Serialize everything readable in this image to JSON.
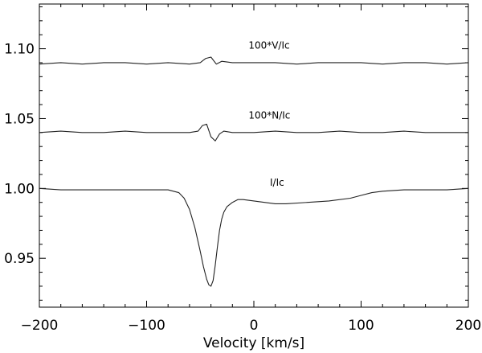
{
  "chart_data": {
    "type": "line",
    "xlabel": "Velocity [km/s]",
    "ylabel": "",
    "xlim": [
      -200,
      200
    ],
    "ylim": [
      0.915,
      1.132
    ],
    "xticks": [
      -200,
      -100,
      0,
      100,
      200
    ],
    "xtick_labels": [
      "−200",
      "−100",
      "0",
      "100",
      "200"
    ],
    "yticks": [
      0.95,
      1.0,
      1.05,
      1.1
    ],
    "ytick_labels": [
      "0.95",
      "1.00",
      "1.05",
      "1.10"
    ],
    "grid": false,
    "series": [
      {
        "name": "100*V/Ic",
        "label_at": [
          -5,
          1.1
        ],
        "x": [
          -200,
          -180,
          -160,
          -140,
          -120,
          -100,
          -80,
          -60,
          -50,
          -45,
          -40,
          -35,
          -30,
          -20,
          0,
          20,
          40,
          60,
          80,
          100,
          120,
          140,
          160,
          180,
          200
        ],
        "y": [
          1.089,
          1.09,
          1.089,
          1.09,
          1.09,
          1.089,
          1.09,
          1.089,
          1.09,
          1.093,
          1.094,
          1.089,
          1.091,
          1.09,
          1.09,
          1.09,
          1.089,
          1.09,
          1.09,
          1.09,
          1.089,
          1.09,
          1.09,
          1.089,
          1.09
        ]
      },
      {
        "name": "100*N/Ic",
        "label_at": [
          -5,
          1.05
        ],
        "x": [
          -200,
          -180,
          -160,
          -140,
          -120,
          -100,
          -80,
          -60,
          -52,
          -48,
          -44,
          -40,
          -36,
          -32,
          -28,
          -20,
          0,
          20,
          40,
          60,
          80,
          100,
          120,
          140,
          160,
          180,
          200
        ],
        "y": [
          1.04,
          1.041,
          1.04,
          1.04,
          1.041,
          1.04,
          1.04,
          1.04,
          1.041,
          1.045,
          1.046,
          1.037,
          1.034,
          1.039,
          1.041,
          1.04,
          1.04,
          1.041,
          1.04,
          1.04,
          1.041,
          1.04,
          1.04,
          1.041,
          1.04,
          1.04,
          1.04
        ]
      },
      {
        "name": "I/Ic",
        "label_at": [
          15,
          1.002
        ],
        "x": [
          -200,
          -180,
          -160,
          -140,
          -120,
          -100,
          -80,
          -70,
          -65,
          -60,
          -55,
          -50,
          -47,
          -44,
          -42,
          -40,
          -38,
          -36,
          -34,
          -32,
          -30,
          -28,
          -25,
          -20,
          -15,
          -10,
          0,
          10,
          20,
          30,
          50,
          70,
          90,
          100,
          110,
          120,
          140,
          160,
          180,
          200
        ],
        "y": [
          1.0,
          0.999,
          0.999,
          0.999,
          0.999,
          0.999,
          0.999,
          0.997,
          0.993,
          0.985,
          0.972,
          0.955,
          0.944,
          0.935,
          0.931,
          0.93,
          0.934,
          0.945,
          0.958,
          0.97,
          0.978,
          0.983,
          0.987,
          0.99,
          0.992,
          0.992,
          0.991,
          0.99,
          0.989,
          0.989,
          0.99,
          0.991,
          0.993,
          0.995,
          0.997,
          0.998,
          0.999,
          0.999,
          0.999,
          1.0
        ]
      }
    ]
  }
}
